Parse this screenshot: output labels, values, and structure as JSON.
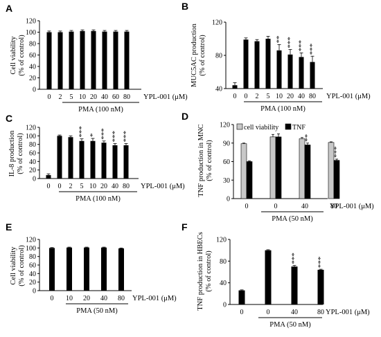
{
  "chart_data": [
    {
      "panel": "A",
      "type": "bar",
      "ylabel": "Cell viability\n(% of control)",
      "ylim": [
        0,
        120
      ],
      "yticks": [
        0,
        20,
        40,
        60,
        80,
        100,
        120
      ],
      "categories": [
        "0",
        "2",
        "5",
        "10",
        "20",
        "40",
        "60",
        "80"
      ],
      "values": [
        100,
        100,
        101,
        102,
        102,
        101,
        101,
        101
      ],
      "errors": [
        2,
        2,
        2,
        2,
        2,
        2,
        2,
        2
      ],
      "significance": [
        "",
        "",
        "",
        "",
        "",
        "",
        "",
        ""
      ],
      "dose_label": "YPL-001 (μM)",
      "treatment_label": "PMA (100 nM)"
    },
    {
      "panel": "B",
      "type": "bar",
      "ylabel": "MUC5AC production\n(% of control)",
      "ylim": [
        40,
        120
      ],
      "yticks": [
        40,
        80,
        120
      ],
      "categories": [
        "0",
        "0",
        "2",
        "5",
        "10",
        "20",
        "40",
        "80"
      ],
      "values": [
        44,
        99,
        97,
        100,
        86,
        81,
        78,
        72
      ],
      "errors": [
        3,
        2,
        2,
        3,
        7,
        6,
        5,
        7
      ],
      "significance": [
        "",
        "",
        "",
        "",
        "**",
        "***",
        "***",
        "***"
      ],
      "dose_label": "YPL-001 (μM)",
      "treatment_label": "PMA (100 nM)"
    },
    {
      "panel": "C",
      "type": "bar",
      "ylabel": "IL-8 production\n(% of control)",
      "ylim": [
        0,
        120
      ],
      "yticks": [
        0,
        20,
        40,
        60,
        80,
        100,
        120
      ],
      "categories": [
        "0",
        "0",
        "2",
        "5",
        "10",
        "20",
        "40",
        "80"
      ],
      "values": [
        8,
        100,
        97,
        88,
        88,
        84,
        78,
        78
      ],
      "errors": [
        3,
        2,
        3,
        5,
        6,
        4,
        4,
        4
      ],
      "significance": [
        "",
        "",
        "",
        "***",
        "*",
        "***",
        "***",
        "***"
      ],
      "dose_label": "YPL-001 (μM)",
      "treatment_label": "PMA (100 nM)"
    },
    {
      "panel": "D",
      "type": "bar",
      "ylabel": "TNF production in MNC\n(% of control)",
      "ylim": [
        0,
        120
      ],
      "yticks": [
        0,
        30,
        60,
        90,
        120
      ],
      "categories": [
        "0",
        "0",
        "40",
        "80"
      ],
      "series": [
        {
          "name": "cell viability",
          "color": "#c8c8c8",
          "values": [
            89,
            100,
            97,
            91
          ],
          "errors": [
            1,
            4,
            2,
            1
          ]
        },
        {
          "name": "TNF",
          "color": "#000000",
          "values": [
            60,
            100,
            87,
            62
          ],
          "errors": [
            1,
            5,
            3,
            2
          ]
        }
      ],
      "significance": [
        "",
        "",
        "**",
        "***"
      ],
      "dose_label": "YPL-001 (μM)",
      "treatment_label": "PMA (50 nM)"
    },
    {
      "panel": "E",
      "type": "bar",
      "ylabel": "Cell viability\n(% of control)",
      "ylim": [
        0,
        120
      ],
      "yticks": [
        0,
        20,
        40,
        60,
        80,
        100,
        120
      ],
      "categories": [
        "0",
        "10",
        "20",
        "40",
        "80"
      ],
      "values": [
        100,
        101,
        101,
        101,
        99
      ],
      "errors": [
        1,
        1,
        1,
        1,
        1
      ],
      "significance": [
        "",
        "",
        "",
        "",
        ""
      ],
      "dose_label": "YPL-001 (μM)",
      "treatment_label": "PMA (50 nM)"
    },
    {
      "panel": "F",
      "type": "bar",
      "ylabel": "TNF production in HBECs\n(% of control)",
      "ylim": [
        0,
        120
      ],
      "yticks": [
        0,
        40,
        80,
        120
      ],
      "categories": [
        "0",
        "0",
        "40",
        "80"
      ],
      "values": [
        26,
        100,
        70,
        64
      ],
      "errors": [
        1,
        1,
        2,
        1
      ],
      "significance": [
        "",
        "",
        "***",
        "***"
      ],
      "dose_label": "YPL-001 (μM)",
      "treatment_label": "PMA (50 nM)"
    }
  ]
}
